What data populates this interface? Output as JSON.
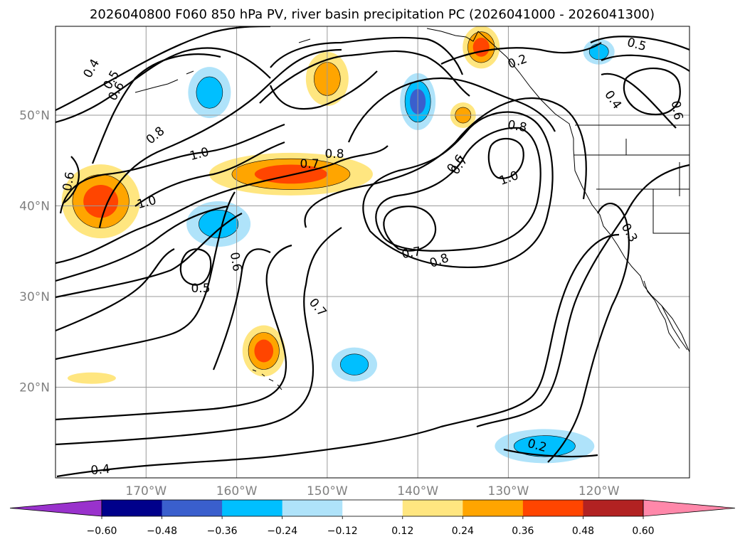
{
  "chart_data": {
    "type": "contour-map",
    "title": "2026040800 F060 850 hPa PV, river basin precipitation PC (2026041000 - 2026041300)",
    "lon_range": [
      -180,
      -110
    ],
    "lat_range": [
      10,
      60
    ],
    "lon_ticks": [
      -170,
      -160,
      -150,
      -140,
      -130,
      -120
    ],
    "lon_tick_labels": [
      "170°W",
      "160°W",
      "150°W",
      "140°W",
      "130°W",
      "120°W"
    ],
    "lat_ticks": [
      20,
      30,
      40,
      50
    ],
    "lat_tick_labels": [
      "20°N",
      "30°N",
      "40°N",
      "50°N"
    ],
    "grid": true,
    "colorbar": {
      "orientation": "horizontal",
      "extend": "both",
      "levels": [
        -0.6,
        -0.48,
        -0.36,
        -0.24,
        -0.12,
        0.12,
        0.24,
        0.36,
        0.48,
        0.6
      ],
      "tick_labels": [
        "−0.60",
        "−0.48",
        "−0.36",
        "−0.24",
        "−0.12",
        "0.12",
        "0.24",
        "0.36",
        "0.48",
        "0.60"
      ],
      "colors": [
        "#9932cc",
        "#00008b",
        "#3a5fcd",
        "#00bfff",
        "#afe3fa",
        "#ffffff",
        "#ffe680",
        "#ffa500",
        "#ff4500",
        "#b22222",
        "#ff88aa"
      ]
    },
    "shaded_anomalies": [
      {
        "lon": -154,
        "lat": 43.5,
        "value": 0.45
      },
      {
        "lon": -175,
        "lat": 40.5,
        "value": 0.4
      },
      {
        "lon": -150,
        "lat": 54,
        "value": 0.35
      },
      {
        "lon": -157,
        "lat": 24,
        "value": 0.4
      },
      {
        "lon": -133,
        "lat": 57.5,
        "value": 0.4
      },
      {
        "lon": -135,
        "lat": 50,
        "value": 0.3
      },
      {
        "lon": -176,
        "lat": 21,
        "value": 0.2
      },
      {
        "lon": -140,
        "lat": 51.5,
        "value": -0.4
      },
      {
        "lon": -163,
        "lat": 52.5,
        "value": -0.3
      },
      {
        "lon": -162,
        "lat": 38,
        "value": -0.3
      },
      {
        "lon": -126,
        "lat": 13.5,
        "value": -0.35
      },
      {
        "lon": -147,
        "lat": 22.5,
        "value": -0.3
      },
      {
        "lon": -120,
        "lat": 57,
        "value": -0.3
      }
    ],
    "pv_contour_labels": [
      "0.4",
      "0.5",
      "0.6",
      "0.8",
      "1.0",
      "0.6",
      "1.0",
      "0.8",
      "0.7",
      "0.6",
      "0.7",
      "0.8",
      "1.0",
      "0.8",
      "0.6",
      "0.5",
      "0.7",
      "0.4",
      "0.2",
      "0.2",
      "0.5",
      "0.4",
      "0.6",
      "0.7",
      "0.3"
    ]
  }
}
